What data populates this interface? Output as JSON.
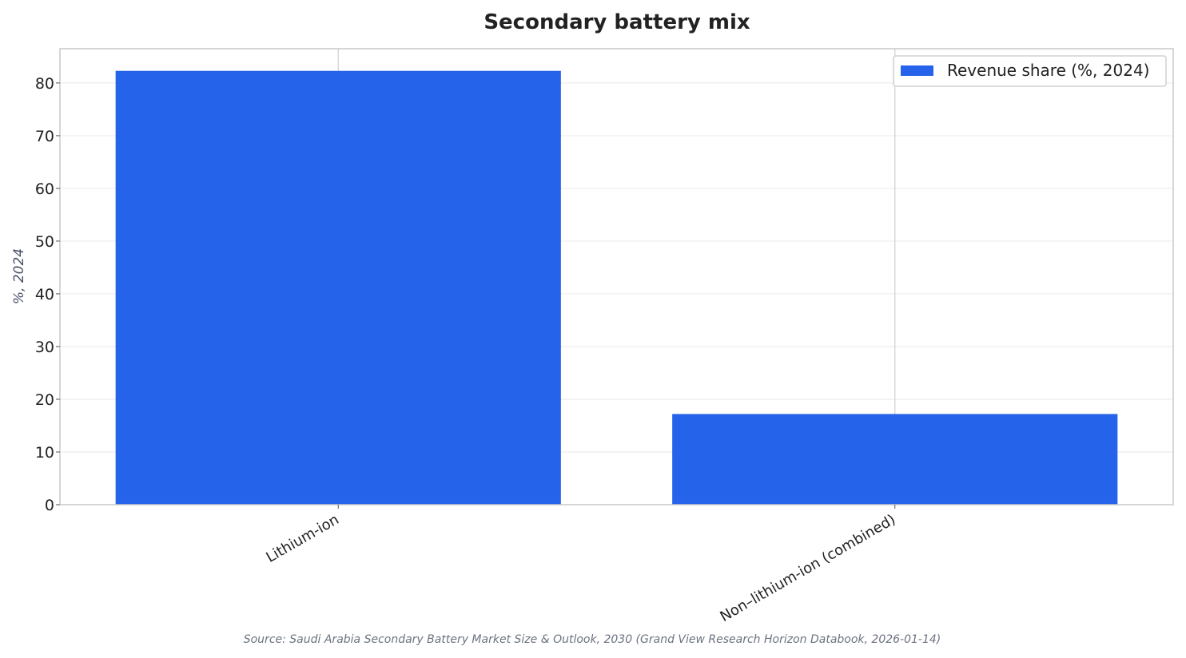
{
  "chart_data": {
    "type": "bar",
    "title": "Secondary battery mix",
    "xlabel": "",
    "ylabel": "%, 2024",
    "categories": [
      "Lithium-ion",
      "Non–lithium-ion (combined)"
    ],
    "series": [
      {
        "name": "Revenue share (%, 2024)",
        "values": [
          82.3,
          17.2
        ]
      }
    ],
    "ylim": [
      0,
      86.5
    ],
    "yticks": [
      0,
      10,
      20,
      30,
      40,
      50,
      60,
      70,
      80
    ],
    "grid": true,
    "legend": "top-right",
    "colors": {
      "bar": "#2563eb",
      "grid": "#ececec",
      "frame": "#c8c8c8"
    },
    "source": "Source: Saudi Arabia Secondary Battery Market Size & Outlook, 2030 (Grand View Research Horizon Databook, 2026-01-14)"
  }
}
